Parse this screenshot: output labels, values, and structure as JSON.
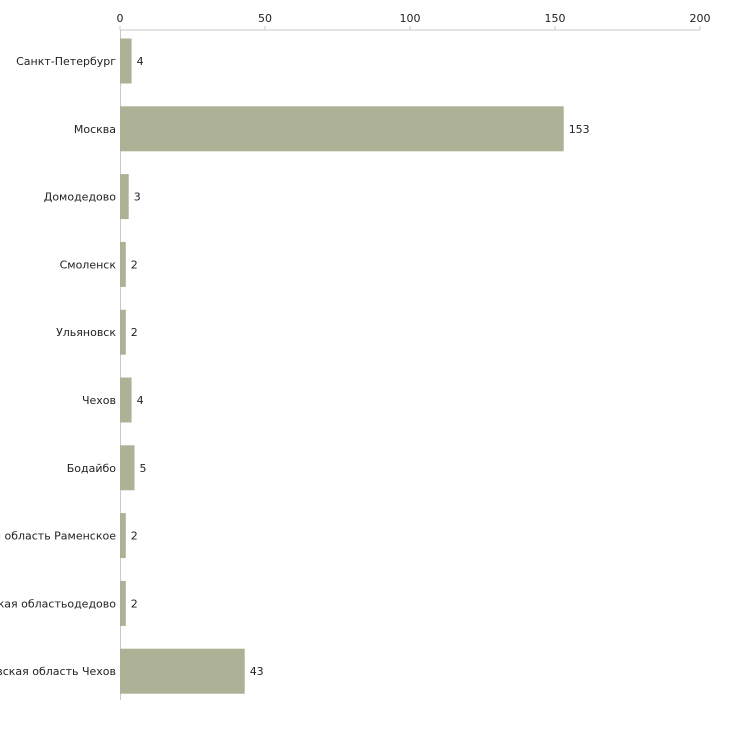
{
  "chart_data": {
    "type": "bar",
    "orientation": "horizontal",
    "title": "",
    "xlabel": "",
    "ylabel": "",
    "xlim": [
      0,
      200
    ],
    "ticks": [
      0,
      50,
      100,
      150,
      200
    ],
    "tick_labels": [
      "0",
      "50",
      "100",
      "150",
      "200"
    ],
    "categories": [
      "Санкт-Петербург",
      "Москва",
      "Домодедово",
      "Смоленск",
      "Ульяновск",
      "Чехов",
      "Бодайбо",
      "я область Раменское",
      "ская областьодедово",
      "вская область Чехов"
    ],
    "values": [
      4,
      153,
      3,
      2,
      2,
      4,
      5,
      2,
      2,
      43
    ],
    "value_labels": [
      "4",
      "153",
      "3",
      "2",
      "2",
      "4",
      "5",
      "2",
      "2",
      "43"
    ],
    "grid": false,
    "colors": {
      "bar": "#adb195",
      "axis": "#c8c8c8",
      "text": "#222222"
    }
  }
}
